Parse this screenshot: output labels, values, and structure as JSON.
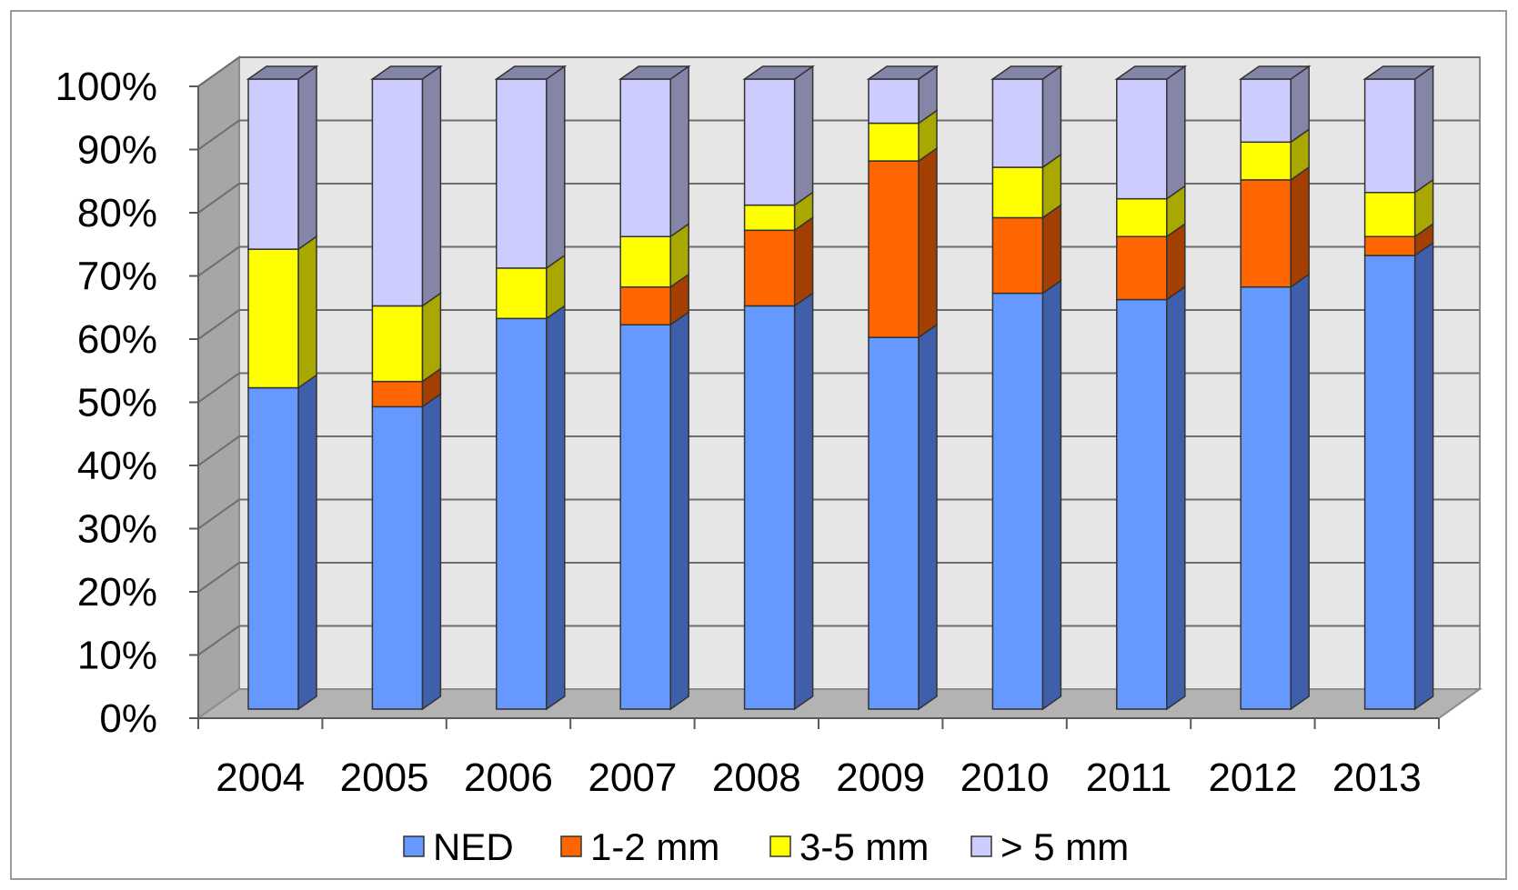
{
  "chart_data": {
    "type": "bar",
    "stacked": true,
    "percent_stacked": true,
    "three_d": true,
    "categories": [
      "2004",
      "2005",
      "2006",
      "2007",
      "2008",
      "2009",
      "2010",
      "2011",
      "2012",
      "2013"
    ],
    "series": [
      {
        "name": "NED",
        "color": "#6699ff",
        "side_color": "#3f5faa",
        "values": [
          51,
          48,
          62,
          61,
          64,
          59,
          66,
          65,
          67,
          72
        ]
      },
      {
        "name": "1-2 mm",
        "color": "#ff6600",
        "side_color": "#a33f00",
        "values": [
          0,
          4,
          0,
          6,
          12,
          28,
          12,
          10,
          17,
          3
        ]
      },
      {
        "name": "3-5 mm",
        "color": "#ffff00",
        "side_color": "#a8a800",
        "values": [
          22,
          12,
          8,
          8,
          4,
          6,
          8,
          6,
          6,
          7
        ]
      },
      {
        "name": "> 5 mm",
        "color": "#ccccff",
        "side_color": "#8585a8",
        "values": [
          27,
          36,
          30,
          25,
          20,
          7,
          14,
          19,
          10,
          18
        ]
      }
    ],
    "y_ticks": [
      "0%",
      "10%",
      "20%",
      "30%",
      "40%",
      "50%",
      "60%",
      "70%",
      "80%",
      "90%",
      "100%"
    ],
    "ylim": [
      0,
      100
    ],
    "grid": true,
    "legend_position": "bottom",
    "title": "",
    "xlabel": "",
    "ylabel": ""
  }
}
